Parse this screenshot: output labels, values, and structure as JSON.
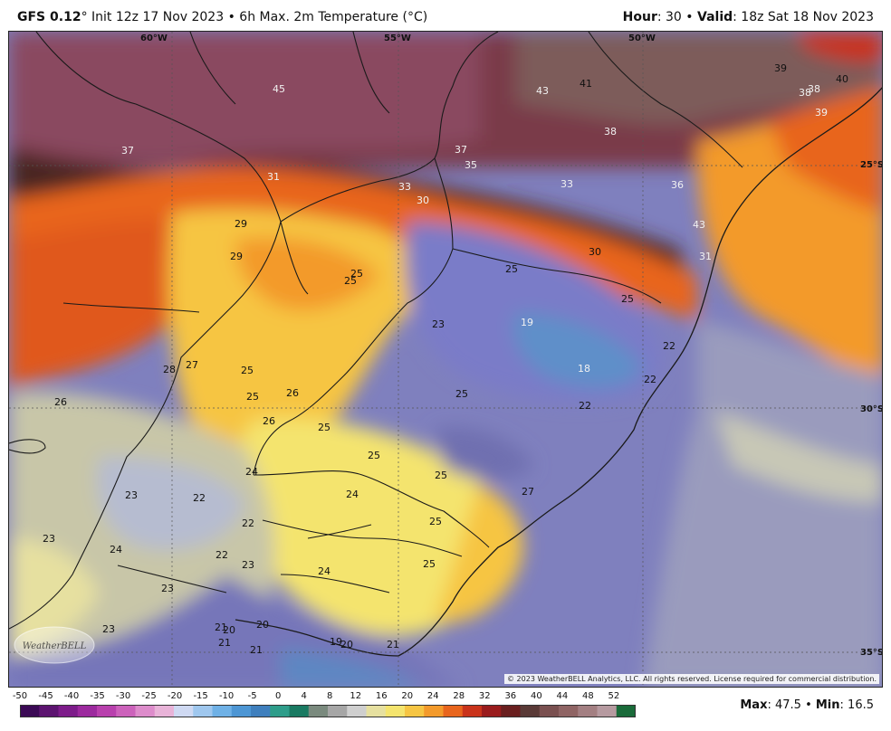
{
  "header": {
    "model": "GFS 0.12",
    "deg": "°",
    "init": " Init 12z 17 Nov 2023 • 6h Max. 2m Temperature (°C)",
    "hour_label": "Hour",
    "hour_value": ": 30 • ",
    "valid_label": "Valid",
    "valid_value": ": 18z Sat 18 Nov 2023"
  },
  "map": {
    "lon_labels": [
      "60°W",
      "55°W",
      "50°W"
    ],
    "lat_labels": [
      "25°S",
      "30°S",
      "35°S"
    ],
    "temperature_labels": [
      "45",
      "43",
      "41",
      "39",
      "40",
      "38",
      "38",
      "39",
      "37",
      "37",
      "35",
      "38",
      "31",
      "33",
      "30",
      "33",
      "36",
      "29",
      "29",
      "43",
      "31",
      "30",
      "25",
      "25",
      "25",
      "25",
      "23",
      "19",
      "22",
      "18",
      "22",
      "28",
      "27",
      "25",
      "26",
      "25",
      "26",
      "25",
      "22",
      "26",
      "25",
      "25",
      "24",
      "24",
      "25",
      "27",
      "22",
      "23",
      "22",
      "25",
      "23",
      "24",
      "22",
      "23",
      "24",
      "25",
      "23",
      "23",
      "21",
      "20",
      "20",
      "21",
      "19",
      "20",
      "21",
      "21"
    ],
    "copyright": "© 2023 WeatherBELL Analytics, LLC. All rights reserved. License required for commercial distribution.",
    "logo_text": "WeatherBELL"
  },
  "colorbar": {
    "ticks": [
      "-50",
      "-45",
      "-40",
      "-35",
      "-30",
      "-25",
      "-20",
      "-15",
      "-10",
      "-5",
      "0",
      "4",
      "8",
      "12",
      "16",
      "20",
      "24",
      "28",
      "32",
      "36",
      "40",
      "44",
      "48",
      "52"
    ],
    "colors": [
      "#3b0a55",
      "#5c1470",
      "#7d1c8a",
      "#9c2a9e",
      "#b840ad",
      "#cc62bb",
      "#dd8ccb",
      "#e8b3d8",
      "#cfd9f2",
      "#9fc7ee",
      "#6fb1e6",
      "#4d96d4",
      "#3f7fbd",
      "#2e9d8a",
      "#1a7a62",
      "#7a8a7e",
      "#a6a6a6",
      "#cfcfcf",
      "#e6e0a0",
      "#f4e46e",
      "#f6c543",
      "#f39a2b",
      "#e8651d",
      "#c9331b",
      "#9a1c1d",
      "#6a1f1f",
      "#5a3a37",
      "#7a5050",
      "#8f6464",
      "#a37f82",
      "#b69aa0",
      "#1a6b3a"
    ]
  },
  "stats": {
    "max_label": "Max",
    "max_value": ": 47.5 • ",
    "min_label": "Min",
    "min_value": ": 16.5"
  }
}
